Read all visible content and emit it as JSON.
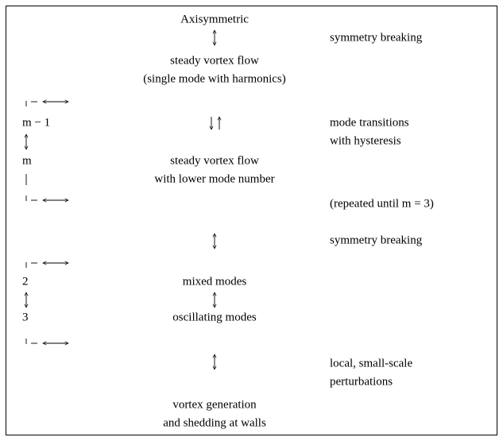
{
  "nodes": [
    {
      "label": "Axisymmetric"
    },
    {
      "label": "steady vortex flow"
    },
    {
      "label": "(single mode with harmonics)"
    },
    {
      "label": "steady vortex flow"
    },
    {
      "label": "with lower mode number"
    },
    {
      "label": "mixed modes"
    },
    {
      "label": "oscillating modes"
    },
    {
      "label": "vortex generation"
    },
    {
      "label": "and shedding at walls"
    }
  ],
  "notes": [
    {
      "label": "symmetry breaking"
    },
    {
      "label": "mode transitions"
    },
    {
      "label": "with hysteresis"
    },
    {
      "label": "(repeated until m = 3)"
    },
    {
      "label": "symmetry breaking"
    },
    {
      "label": "local, small-scale"
    },
    {
      "label": "perturbations"
    }
  ],
  "left_labels": [
    {
      "label": "m − 1"
    },
    {
      "label": "m"
    },
    {
      "label": "2"
    },
    {
      "label": "3"
    }
  ]
}
